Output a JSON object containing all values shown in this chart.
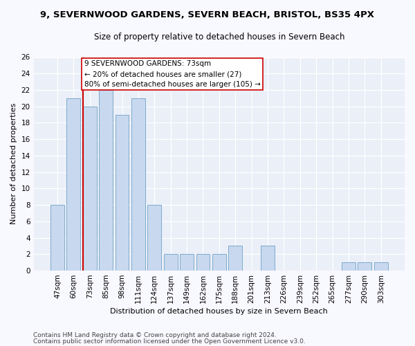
{
  "title1": "9, SEVERNWOOD GARDENS, SEVERN BEACH, BRISTOL, BS35 4PX",
  "title2": "Size of property relative to detached houses in Severn Beach",
  "xlabel": "Distribution of detached houses by size in Severn Beach",
  "ylabel": "Number of detached properties",
  "categories": [
    "47sqm",
    "60sqm",
    "73sqm",
    "85sqm",
    "98sqm",
    "111sqm",
    "124sqm",
    "137sqm",
    "149sqm",
    "162sqm",
    "175sqm",
    "188sqm",
    "201sqm",
    "213sqm",
    "226sqm",
    "239sqm",
    "252sqm",
    "265sqm",
    "277sqm",
    "290sqm",
    "303sqm"
  ],
  "values": [
    8,
    21,
    20,
    22,
    19,
    21,
    8,
    2,
    2,
    2,
    2,
    3,
    0,
    3,
    0,
    0,
    0,
    0,
    1,
    1,
    1
  ],
  "bar_color": "#c8d8ee",
  "bar_edge_color": "#7eaacc",
  "highlight_color": "#cc0000",
  "ylim": [
    0,
    26
  ],
  "yticks": [
    0,
    2,
    4,
    6,
    8,
    10,
    12,
    14,
    16,
    18,
    20,
    22,
    24,
    26
  ],
  "vline_bar_index": 2,
  "annotation_text": "9 SEVERNWOOD GARDENS: 73sqm\n← 20% of detached houses are smaller (27)\n80% of semi-detached houses are larger (105) →",
  "footnote1": "Contains HM Land Registry data © Crown copyright and database right 2024.",
  "footnote2": "Contains public sector information licensed under the Open Government Licence v3.0.",
  "bg_color": "#f8f8ff",
  "plot_bg_color": "#eaeff8",
  "grid_color": "#ffffff",
  "title1_fontsize": 9.5,
  "title2_fontsize": 8.5,
  "axis_label_fontsize": 8.0,
  "tick_fontsize": 7.5,
  "annotation_fontsize": 7.5,
  "footnote_fontsize": 6.5
}
